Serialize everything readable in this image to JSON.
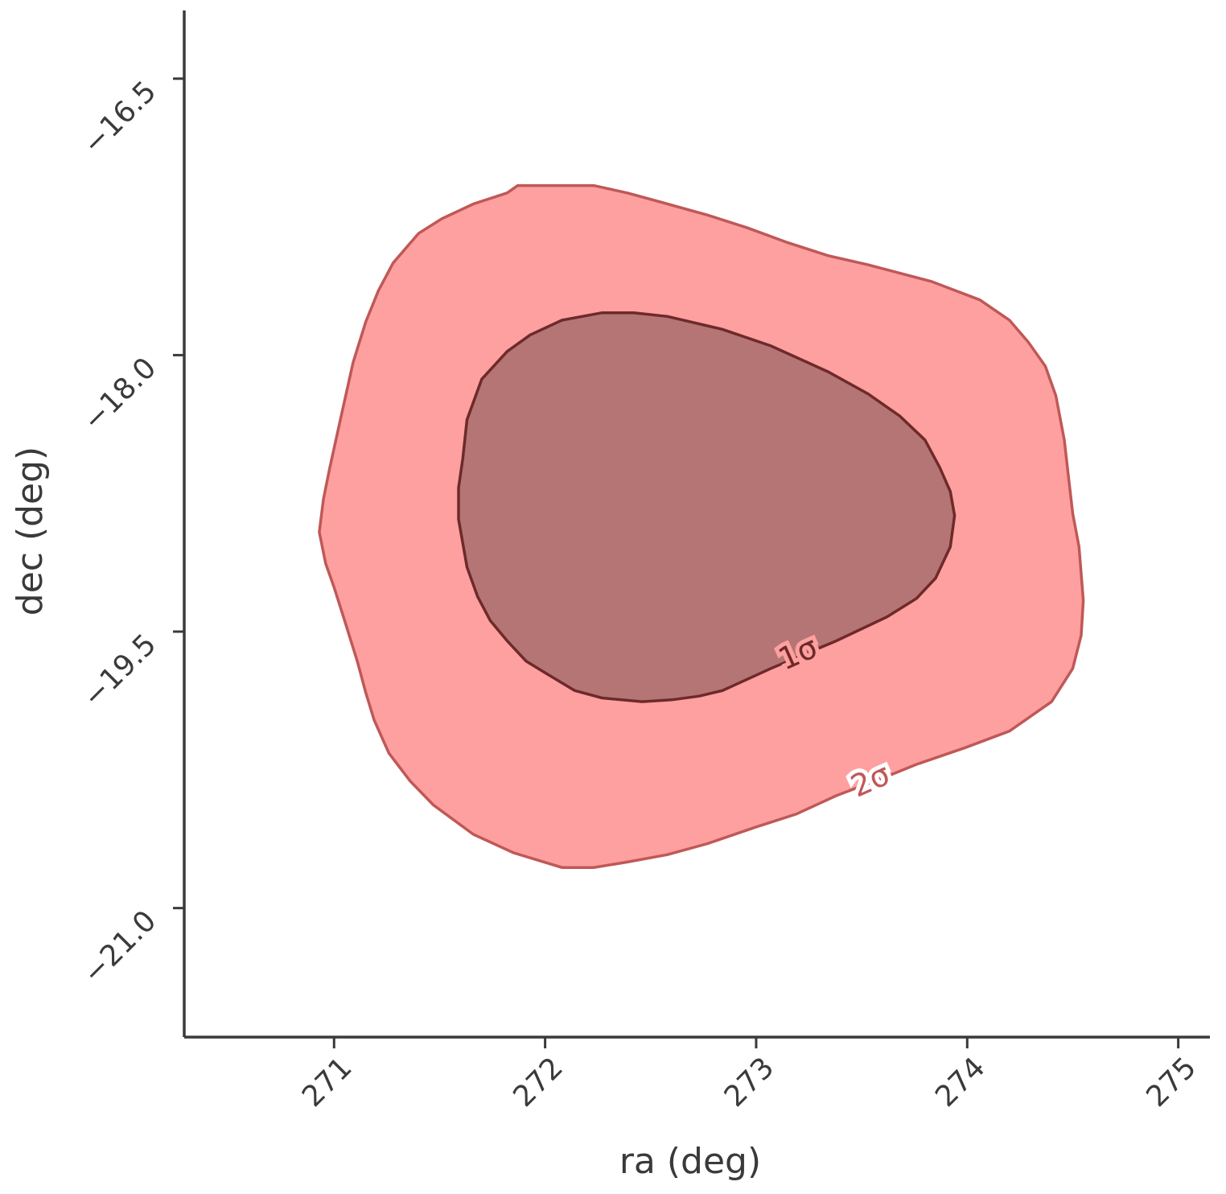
{
  "chart_data": {
    "type": "contour",
    "xlabel": "ra (deg)",
    "ylabel": "dec (deg)",
    "xlim": [
      270.29,
      275.15
    ],
    "ylim": [
      -21.7,
      -16.13
    ],
    "xticks": [
      271,
      272,
      273,
      274,
      275
    ],
    "yticks": [
      {
        "value": -16.5,
        "label": "−16.5"
      },
      {
        "value": -18.0,
        "label": "−18.0"
      },
      {
        "value": -19.5,
        "label": "−19.5"
      },
      {
        "value": -21.0,
        "label": "−21.0"
      }
    ],
    "contours": [
      {
        "label": "2σ",
        "fill": "#ffa0a0",
        "edge": "#c05858",
        "x": [
          271.87,
          272.02,
          272.23,
          272.39,
          272.58,
          272.77,
          272.96,
          273.15,
          273.34,
          273.53,
          273.83,
          274.06,
          274.2,
          274.29,
          274.37,
          274.42,
          274.46,
          274.48,
          274.5,
          274.53,
          274.55,
          274.54,
          274.5,
          274.4,
          274.2,
          273.99,
          273.76,
          273.61,
          273.38,
          273.19,
          273.0,
          272.77,
          272.58,
          272.39,
          272.23,
          272.08,
          271.85,
          271.66,
          271.47,
          271.36,
          271.26,
          271.19,
          271.15,
          271.11,
          271.05,
          271.0,
          270.96,
          270.93,
          270.95,
          270.98,
          271.03,
          271.09,
          271.15,
          271.21,
          271.28,
          271.4,
          271.51,
          271.66,
          271.82
        ],
        "y": [
          -17.08,
          -17.08,
          -17.08,
          -17.12,
          -17.18,
          -17.24,
          -17.31,
          -17.39,
          -17.46,
          -17.51,
          -17.6,
          -17.7,
          -17.81,
          -17.93,
          -18.06,
          -18.22,
          -18.46,
          -18.66,
          -18.86,
          -19.04,
          -19.33,
          -19.52,
          -19.7,
          -19.88,
          -20.04,
          -20.13,
          -20.22,
          -20.29,
          -20.39,
          -20.49,
          -20.56,
          -20.65,
          -20.71,
          -20.75,
          -20.78,
          -20.78,
          -20.7,
          -20.6,
          -20.44,
          -20.31,
          -20.16,
          -19.98,
          -19.83,
          -19.66,
          -19.44,
          -19.26,
          -19.13,
          -18.96,
          -18.78,
          -18.61,
          -18.35,
          -18.04,
          -17.82,
          -17.65,
          -17.5,
          -17.34,
          -17.26,
          -17.18,
          -17.12
        ]
      },
      {
        "label": "1σ",
        "fill": "#b57575",
        "edge": "#6e2a2a",
        "x": [
          271.93,
          272.08,
          272.27,
          272.42,
          272.58,
          272.84,
          273.07,
          273.34,
          273.53,
          273.68,
          273.8,
          273.87,
          273.92,
          273.94,
          273.92,
          273.85,
          273.76,
          273.62,
          273.38,
          273.07,
          272.84,
          272.73,
          272.6,
          272.46,
          272.27,
          272.14,
          272.01,
          271.91,
          271.82,
          271.74,
          271.68,
          271.63,
          271.59,
          271.59,
          271.61,
          271.63,
          271.7,
          271.82
        ],
        "y": [
          -17.89,
          -17.81,
          -17.77,
          -17.77,
          -17.79,
          -17.86,
          -17.95,
          -18.09,
          -18.21,
          -18.33,
          -18.46,
          -18.61,
          -18.74,
          -18.87,
          -19.04,
          -19.21,
          -19.32,
          -19.42,
          -19.55,
          -19.7,
          -19.82,
          -19.85,
          -19.87,
          -19.88,
          -19.86,
          -19.82,
          -19.73,
          -19.66,
          -19.55,
          -19.44,
          -19.31,
          -19.15,
          -18.89,
          -18.72,
          -18.56,
          -18.35,
          -18.13,
          -17.98
        ]
      }
    ]
  }
}
